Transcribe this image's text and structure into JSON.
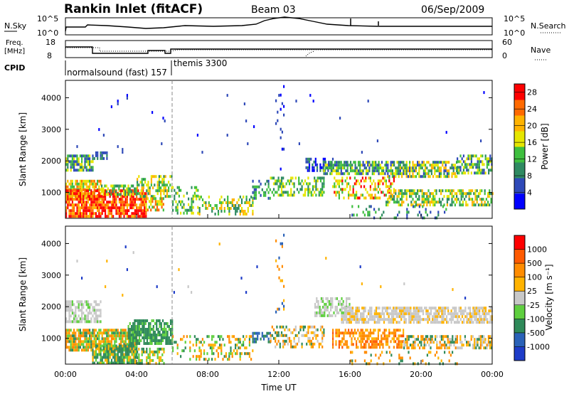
{
  "header": {
    "title": "Rankin Inlet (fitACF)",
    "beam": "Beam 03",
    "date": "06/Sep/2009"
  },
  "top_panels": {
    "nsky_label": "N.Sky",
    "nsky_ticks": [
      "10^5",
      "10^0"
    ],
    "nsearch_ticks": [
      "10^5",
      "10^0"
    ],
    "nsearch_label": "N.Search",
    "freq_label": "Freq.",
    "freq_unit": "[MHz]",
    "freq_ticks": [
      "18",
      "8"
    ],
    "nave_ticks": [
      "60",
      "0"
    ],
    "nave_label": "Nave",
    "cpid_label": "CPID",
    "cpid_mode_1": "normalsound (fast) 157",
    "cpid_mode_2": "themis 3300"
  },
  "chart_data": [
    {
      "type": "heatmap",
      "name": "power",
      "ylabel": "Slant Range [km]",
      "xlabel": "Time UT",
      "x_ticks": [
        "00:00",
        "04:00",
        "08:00",
        "12:00",
        "16:00",
        "20:00",
        "00:00"
      ],
      "y_ticks": [
        "1000",
        "2000",
        "3000",
        "4000"
      ],
      "xlim": [
        0,
        24
      ],
      "ylim": [
        180,
        4550
      ],
      "colorbar": {
        "label": "Power [dB]",
        "ticks": [
          "4",
          "8",
          "12",
          "16",
          "20",
          "24",
          "28"
        ],
        "range": [
          0,
          30
        ],
        "colors": [
          "#0000ff",
          "#2e49b8",
          "#2f8a62",
          "#3fbf3f",
          "#e6e600",
          "#ffb300",
          "#ff6a00",
          "#ff0000"
        ]
      },
      "mode_change_hour": 6.0
    },
    {
      "type": "heatmap",
      "name": "velocity",
      "ylabel": "Slant Range [km]",
      "xlabel": "Time UT",
      "x_ticks": [
        "00:00",
        "04:00",
        "08:00",
        "12:00",
        "16:00",
        "20:00",
        "00:00"
      ],
      "y_ticks": [
        "1000",
        "2000",
        "3000",
        "4000"
      ],
      "xlim": [
        0,
        24
      ],
      "ylim": [
        180,
        4550
      ],
      "colorbar": {
        "label": "Velocity [m s⁻¹]",
        "ticks": [
          "1000",
          "500",
          "100",
          "25",
          "-25",
          "-100",
          "-500",
          "-1000"
        ],
        "colors": [
          "#1e3cc8",
          "#2a62b8",
          "#2f8a5a",
          "#5fcf3f",
          "#c8c8c8",
          "#ffb300",
          "#ff8c00",
          "#ff5a00",
          "#ff0000"
        ]
      },
      "mode_change_hour": 6.0
    }
  ],
  "time_axis": {
    "xlabel": "Time UT",
    "ticks": [
      "00:00",
      "04:00",
      "08:00",
      "12:00",
      "16:00",
      "20:00",
      "00:00"
    ]
  }
}
